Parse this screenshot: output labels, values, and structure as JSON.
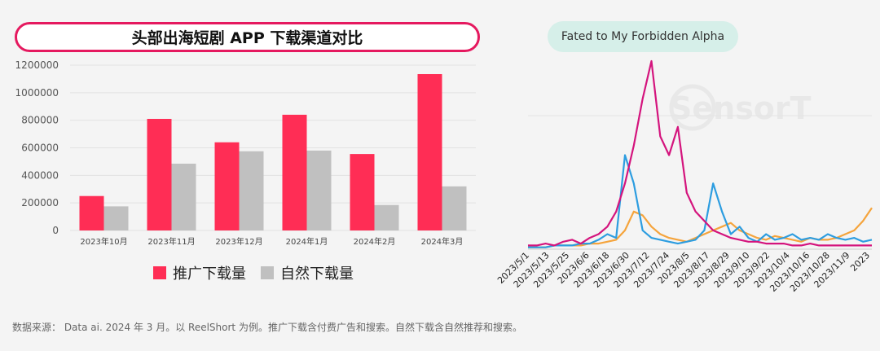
{
  "left_title": "头部出海短剧 APP 下载渠道对比",
  "right_title": "Fated to My Forbidden Alpha",
  "watermark": "SensorT",
  "footer": "数据来源： Data ai. 2024 年 3 月。以 ReelShort 为例。推广下载含付费广告和搜索。自然下载含自然推荐和搜索。",
  "colors": {
    "promo": "#ff2d55",
    "organic": "#c0c0c0",
    "pink": "#d4147d",
    "blue": "#2d9de0",
    "orange": "#f5a43c"
  },
  "chart_data": [
    {
      "type": "bar",
      "categories": [
        "2023年10月",
        "2023年11月",
        "2023年12月",
        "2024年1月",
        "2024年2月",
        "2024年3月"
      ],
      "series": [
        {
          "name": "推广下载量",
          "values": [
            250000,
            810000,
            640000,
            840000,
            555000,
            1135000
          ]
        },
        {
          "name": "自然下载量",
          "values": [
            175000,
            485000,
            575000,
            580000,
            185000,
            320000
          ]
        }
      ],
      "yticks": [
        "0",
        "200000",
        "400000",
        "600000",
        "800000",
        "1000000",
        "1200000"
      ],
      "ylim": [
        0,
        1200000
      ],
      "legend_position": "bottom"
    },
    {
      "type": "line",
      "xticks": [
        "2023/5/1",
        "2023/5/13",
        "2023/5/25",
        "2023/6/6",
        "2023/6/18",
        "2023/6/30",
        "2023/7/12",
        "2023/7/24",
        "2023/8/5",
        "2023/8/17",
        "2023/8/29",
        "2023/9/10",
        "2023/9/22",
        "2023/10/4",
        "2023/10/16",
        "2023/10/28",
        "2023/11/9",
        "2023"
      ],
      "series": [
        {
          "color": "pink",
          "values": [
            0.02,
            0.02,
            0.03,
            0.02,
            0.04,
            0.05,
            0.03,
            0.06,
            0.08,
            0.12,
            0.2,
            0.35,
            0.55,
            0.8,
            1.0,
            0.6,
            0.5,
            0.65,
            0.3,
            0.2,
            0.15,
            0.1,
            0.08,
            0.06,
            0.05,
            0.04,
            0.04,
            0.03,
            0.03,
            0.03,
            0.02,
            0.02,
            0.03,
            0.02,
            0.02,
            0.02,
            0.02,
            0.02,
            0.02,
            0.02
          ]
        },
        {
          "color": "blue",
          "values": [
            0.01,
            0.01,
            0.01,
            0.02,
            0.02,
            0.02,
            0.03,
            0.03,
            0.05,
            0.08,
            0.06,
            0.5,
            0.35,
            0.1,
            0.06,
            0.05,
            0.04,
            0.03,
            0.04,
            0.05,
            0.1,
            0.35,
            0.2,
            0.08,
            0.12,
            0.06,
            0.04,
            0.08,
            0.05,
            0.06,
            0.08,
            0.05,
            0.06,
            0.05,
            0.08,
            0.06,
            0.05,
            0.06,
            0.04,
            0.05
          ]
        },
        {
          "color": "orange",
          "values": [
            0.01,
            0.01,
            0.01,
            0.02,
            0.02,
            0.02,
            0.02,
            0.03,
            0.03,
            0.04,
            0.05,
            0.1,
            0.2,
            0.18,
            0.12,
            0.08,
            0.06,
            0.05,
            0.04,
            0.06,
            0.08,
            0.1,
            0.12,
            0.14,
            0.1,
            0.08,
            0.06,
            0.05,
            0.07,
            0.06,
            0.05,
            0.04,
            0.06,
            0.05,
            0.05,
            0.06,
            0.08,
            0.1,
            0.15,
            0.22
          ]
        }
      ]
    }
  ]
}
